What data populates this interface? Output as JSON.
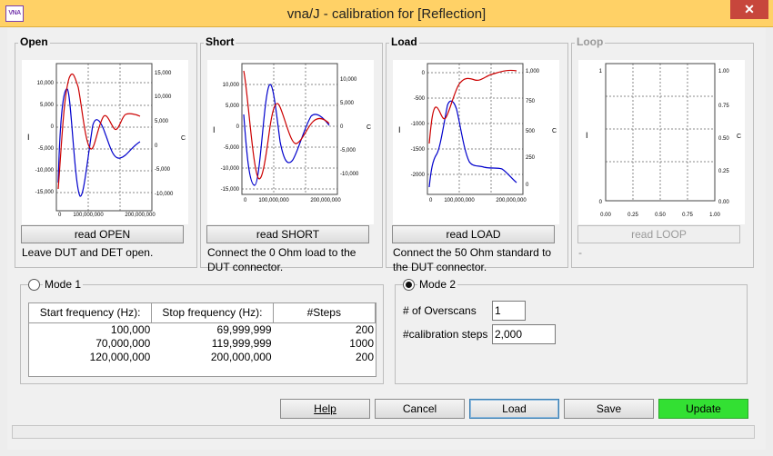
{
  "window": {
    "title": "vna/J - calibration for [Reflection]",
    "close_label": "✕",
    "app_icon_text": "VNA"
  },
  "panels": {
    "open": {
      "title": "Open",
      "button": "read OPEN",
      "description": "Leave DUT and DET open.",
      "left_axis_label": "I",
      "right_axis_label": "C",
      "left_ticks": [
        "10,000",
        "5,000",
        "0",
        "-5,000",
        "-10,000",
        "-15,000"
      ],
      "right_ticks": [
        "15,000",
        "10,000",
        "5,000",
        "0",
        "-5,000",
        "-10,000"
      ],
      "x_ticks": [
        "0",
        "100,000,000",
        "200,000,000"
      ]
    },
    "short": {
      "title": "Short",
      "button": "read SHORT",
      "description": "Connect the 0 Ohm load to the DUT connector.",
      "left_axis_label": "I",
      "right_axis_label": "C",
      "left_ticks": [
        "10,000",
        "5,000",
        "0",
        "-5,000",
        "-10,000",
        "-15,000"
      ],
      "right_ticks": [
        "10,000",
        "5,000",
        "0",
        "-5,000",
        "-10,000"
      ],
      "x_ticks": [
        "0",
        "100,000,000",
        "200,000,000"
      ]
    },
    "load": {
      "title": "Load",
      "button": "read LOAD",
      "description": "Connect the 50 Ohm standard to the DUT connector.",
      "left_axis_label": "I",
      "right_axis_label": "C",
      "left_ticks": [
        "0",
        "-500",
        "-1000",
        "-1500",
        "-2000"
      ],
      "right_ticks": [
        "1,000",
        "750",
        "500",
        "250",
        "0"
      ],
      "x_ticks": [
        "0",
        "100,000,000",
        "200,000,000"
      ]
    },
    "loop": {
      "title": "Loop",
      "button": "read LOOP",
      "description": "-",
      "left_axis_label": "I",
      "right_axis_label": "C",
      "left_ticks": [
        "1",
        "0"
      ],
      "right_ticks": [
        "1.00",
        "0.75",
        "0.50",
        "0.25",
        "0.00"
      ],
      "x_ticks": [
        "0.00",
        "0.25",
        "0.50",
        "0.75",
        "1.00"
      ]
    }
  },
  "mode1": {
    "label": "Mode 1",
    "selected": false,
    "columns": [
      "Start frequency (Hz):",
      "Stop frequency (Hz):",
      "#Steps"
    ],
    "rows": [
      [
        "100,000",
        "69,999,999",
        "200"
      ],
      [
        "70,000,000",
        "119,999,999",
        "1000"
      ],
      [
        "120,000,000",
        "200,000,000",
        "200"
      ]
    ]
  },
  "mode2": {
    "label": "Mode 2",
    "selected": true,
    "overscans_label": "# of Overscans",
    "overscans_value": "1",
    "steps_label": "#calibration steps",
    "steps_value": "2,000"
  },
  "buttons": {
    "help": "Help",
    "cancel": "Cancel",
    "load": "Load",
    "save": "Save",
    "update": "Update"
  },
  "colors": {
    "titlebar": "#ffd166",
    "close": "#c7463c",
    "series_blue": "#0000cc",
    "series_red": "#cc0000",
    "update_button": "#33e033"
  }
}
